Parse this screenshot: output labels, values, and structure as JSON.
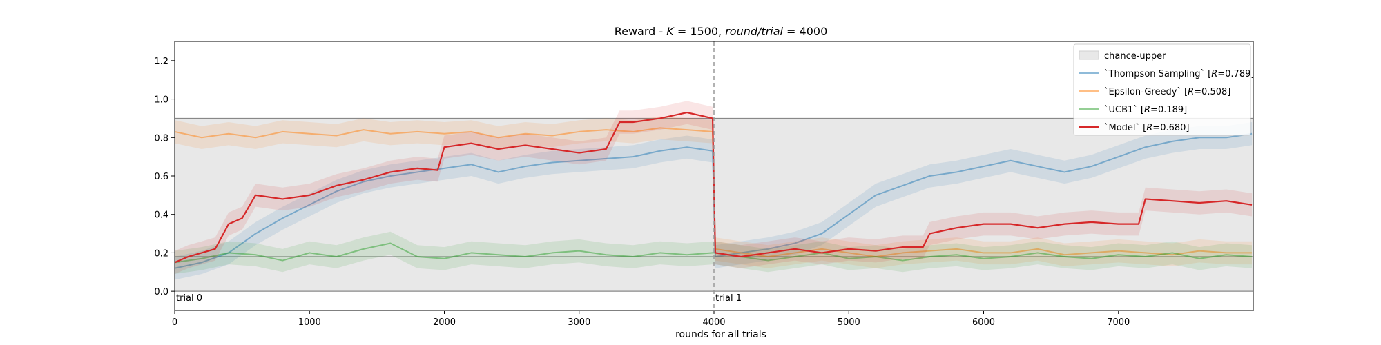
{
  "chart_data": {
    "type": "line",
    "title": {
      "prefix": "Reward - ",
      "k_label": "K",
      "k_value": "1500",
      "rounds_label": "round/trial",
      "rounds_value": "4000"
    },
    "xlabel": "rounds for all trials",
    "ylabel": "",
    "xlim": [
      0,
      8000
    ],
    "ylim": [
      -0.1,
      1.3
    ],
    "xticks": [
      0,
      1000,
      2000,
      3000,
      4000,
      5000,
      6000,
      7000
    ],
    "xtick_labels": [
      "0",
      "1000",
      "2000",
      "3000",
      "4000",
      "5000",
      "6000",
      "7000"
    ],
    "yticks": [
      0.0,
      0.2,
      0.4,
      0.6,
      0.8,
      1.0,
      1.2
    ],
    "ytick_labels": [
      "0.0",
      "0.2",
      "0.4",
      "0.6",
      "0.8",
      "1.0",
      "1.2"
    ],
    "chance_band": {
      "name": "chance-upper",
      "lower": 0.0,
      "upper": 0.9,
      "color": "#e8e8e8"
    },
    "hlines": [
      0.0,
      0.18,
      0.9
    ],
    "trial_boundary_x": 4000,
    "annotations": [
      {
        "text": "trial 0",
        "x": 0,
        "y": 0.0
      },
      {
        "text": "trial 1",
        "x": 4000,
        "y": 0.0
      }
    ],
    "legend_position": "top-right",
    "series": [
      {
        "name": "Thompson Sampling",
        "legend": {
          "name": "`Thompson Sampling`",
          "metric": "R",
          "value": "0.789"
        },
        "color": "#1f77b4",
        "alpha": 0.5,
        "x": [
          0,
          200,
          400,
          600,
          800,
          1000,
          1200,
          1400,
          1600,
          1800,
          2000,
          2200,
          2400,
          2600,
          2800,
          3000,
          3200,
          3400,
          3600,
          3800,
          3990,
          4010,
          4200,
          4400,
          4600,
          4800,
          5000,
          5200,
          5400,
          5600,
          5800,
          6000,
          6200,
          6400,
          6600,
          6800,
          7000,
          7200,
          7400,
          7600,
          7800,
          7990
        ],
        "y": [
          0.12,
          0.15,
          0.2,
          0.3,
          0.38,
          0.45,
          0.52,
          0.57,
          0.6,
          0.62,
          0.64,
          0.66,
          0.62,
          0.65,
          0.67,
          0.68,
          0.69,
          0.7,
          0.73,
          0.75,
          0.73,
          0.18,
          0.2,
          0.22,
          0.25,
          0.3,
          0.4,
          0.5,
          0.55,
          0.6,
          0.62,
          0.65,
          0.68,
          0.65,
          0.62,
          0.65,
          0.7,
          0.75,
          0.78,
          0.8,
          0.8,
          0.82
        ]
      },
      {
        "name": "Epsilon-Greedy",
        "legend": {
          "name": "`Epsilon-Greedy`",
          "metric": "R",
          "value": "0.508"
        },
        "color": "#ff7f0e",
        "alpha": 0.5,
        "x": [
          0,
          200,
          400,
          600,
          800,
          1000,
          1200,
          1400,
          1600,
          1800,
          2000,
          2200,
          2400,
          2600,
          2800,
          3000,
          3200,
          3400,
          3600,
          3800,
          3990,
          4010,
          4200,
          4400,
          4600,
          4800,
          5000,
          5200,
          5400,
          5600,
          5800,
          6000,
          6200,
          6400,
          6600,
          6800,
          7000,
          7200,
          7400,
          7600,
          7800,
          7990
        ],
        "y": [
          0.83,
          0.8,
          0.82,
          0.8,
          0.83,
          0.82,
          0.81,
          0.84,
          0.82,
          0.83,
          0.82,
          0.83,
          0.8,
          0.82,
          0.81,
          0.83,
          0.84,
          0.83,
          0.85,
          0.84,
          0.83,
          0.22,
          0.2,
          0.18,
          0.2,
          0.22,
          0.2,
          0.18,
          0.2,
          0.21,
          0.22,
          0.2,
          0.2,
          0.22,
          0.19,
          0.2,
          0.21,
          0.2,
          0.19,
          0.21,
          0.2,
          0.2
        ]
      },
      {
        "name": "UCB1",
        "legend": {
          "name": "`UCB1`",
          "metric": "R",
          "value": "0.189"
        },
        "color": "#2ca02c",
        "alpha": 0.5,
        "x": [
          0,
          200,
          400,
          600,
          800,
          1000,
          1200,
          1400,
          1600,
          1800,
          2000,
          2200,
          2400,
          2600,
          2800,
          3000,
          3200,
          3400,
          3600,
          3800,
          3990,
          4010,
          4200,
          4400,
          4600,
          4800,
          5000,
          5200,
          5400,
          5600,
          5800,
          6000,
          6200,
          6400,
          6600,
          6800,
          7000,
          7200,
          7400,
          7600,
          7800,
          7990
        ],
        "y": [
          0.15,
          0.17,
          0.2,
          0.19,
          0.16,
          0.2,
          0.18,
          0.22,
          0.25,
          0.18,
          0.17,
          0.2,
          0.19,
          0.18,
          0.2,
          0.21,
          0.19,
          0.18,
          0.2,
          0.19,
          0.2,
          0.2,
          0.18,
          0.16,
          0.18,
          0.2,
          0.17,
          0.18,
          0.16,
          0.18,
          0.19,
          0.17,
          0.18,
          0.2,
          0.18,
          0.17,
          0.19,
          0.18,
          0.2,
          0.17,
          0.19,
          0.18
        ]
      },
      {
        "name": "Model",
        "legend": {
          "name": "`Model`",
          "metric": "R",
          "value": "0.680"
        },
        "color": "#d62728",
        "alpha": 1.0,
        "x": [
          0,
          100,
          200,
          300,
          400,
          500,
          600,
          800,
          1000,
          1200,
          1400,
          1600,
          1800,
          1950,
          2000,
          2200,
          2400,
          2600,
          2800,
          3000,
          3200,
          3300,
          3400,
          3600,
          3800,
          3990,
          4010,
          4200,
          4400,
          4600,
          4800,
          5000,
          5200,
          5400,
          5550,
          5600,
          5800,
          6000,
          6200,
          6400,
          6600,
          6800,
          7000,
          7150,
          7200,
          7400,
          7600,
          7800,
          7990
        ],
        "y": [
          0.15,
          0.18,
          0.2,
          0.22,
          0.35,
          0.38,
          0.5,
          0.48,
          0.5,
          0.55,
          0.58,
          0.62,
          0.64,
          0.63,
          0.75,
          0.77,
          0.74,
          0.76,
          0.74,
          0.72,
          0.74,
          0.88,
          0.88,
          0.9,
          0.93,
          0.9,
          0.2,
          0.18,
          0.2,
          0.22,
          0.2,
          0.22,
          0.21,
          0.23,
          0.23,
          0.3,
          0.33,
          0.35,
          0.35,
          0.33,
          0.35,
          0.36,
          0.35,
          0.35,
          0.48,
          0.47,
          0.46,
          0.47,
          0.45
        ]
      }
    ]
  }
}
